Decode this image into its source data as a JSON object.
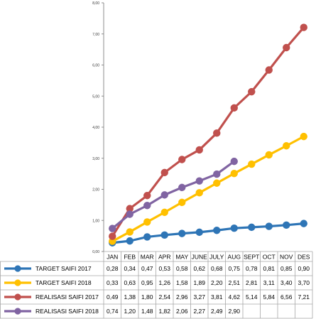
{
  "chart_data": {
    "type": "line",
    "title": "",
    "xlabel": "",
    "ylabel": "",
    "ylim": [
      0,
      8
    ],
    "yticks": [
      "0,00",
      "1,00",
      "2,00",
      "3,00",
      "4,00",
      "5,00",
      "6,00",
      "7,00",
      "8,00"
    ],
    "grid": false,
    "legend": "table-bottom",
    "categories": [
      "JAN",
      "FEB",
      "MAR",
      "APR",
      "MAY",
      "JUNE",
      "JULY",
      "AUG",
      "SEPT",
      "OCT",
      "NOV",
      "DES"
    ],
    "series": [
      {
        "name": "TARGET SAIFI 2017",
        "color": "#2E75B6",
        "values": [
          0.28,
          0.34,
          0.47,
          0.53,
          0.58,
          0.62,
          0.68,
          0.75,
          0.78,
          0.81,
          0.85,
          0.9
        ],
        "labels": [
          "0,28",
          "0,34",
          "0,47",
          "0,53",
          "0,58",
          "0,62",
          "0,68",
          "0,75",
          "0,78",
          "0,81",
          "0,85",
          "0,90"
        ]
      },
      {
        "name": "TARGET SAIFI 2018",
        "color": "#FFC000",
        "values": [
          0.33,
          0.63,
          0.95,
          1.26,
          1.58,
          1.89,
          2.2,
          2.51,
          2.81,
          3.11,
          3.4,
          3.7
        ],
        "labels": [
          "0,33",
          "0,63",
          "0,95",
          "1,26",
          "1,58",
          "1,89",
          "2,20",
          "2,51",
          "2,81",
          "3,11",
          "3,40",
          "3,70"
        ]
      },
      {
        "name": "REALISASI SAIFI 2017",
        "color": "#C0504D",
        "values": [
          0.49,
          1.38,
          1.8,
          2.54,
          2.96,
          3.27,
          3.81,
          4.62,
          5.14,
          5.84,
          6.56,
          7.21
        ],
        "labels": [
          "0,49",
          "1,38",
          "1,80",
          "2,54",
          "2,96",
          "3,27",
          "3,81",
          "4,62",
          "5,14",
          "5,84",
          "6,56",
          "7,21"
        ]
      },
      {
        "name": "REALISASI SAIFI 2018",
        "color": "#8064A2",
        "values": [
          0.74,
          1.2,
          1.48,
          1.82,
          2.06,
          2.27,
          2.49,
          2.9,
          null,
          null,
          null,
          null
        ],
        "labels": [
          "0,74",
          "1,20",
          "1,48",
          "1,82",
          "2,06",
          "2,27",
          "2,49",
          "2,90",
          "",
          "",
          "",
          ""
        ]
      }
    ]
  }
}
